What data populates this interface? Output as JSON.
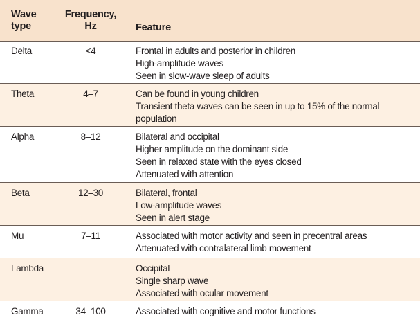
{
  "headers": {
    "wave_line1": "Wave",
    "wave_line2": "type",
    "freq_line1": "Frequency,",
    "freq_line2": "Hz",
    "feature": "Feature"
  },
  "rows": [
    {
      "wave": "Delta",
      "freq": "<4",
      "features": [
        "Frontal in adults and posterior in children",
        "High-amplitude waves",
        "Seen in slow-wave sleep of adults"
      ]
    },
    {
      "wave": "Theta",
      "freq": "4–7",
      "features": [
        "Can be found in young children",
        "Transient theta waves can be seen in up to 15% of the normal",
        "population"
      ]
    },
    {
      "wave": "Alpha",
      "freq": "8–12",
      "features": [
        "Bilateral and occipital",
        "Higher amplitude on the dominant side",
        "Seen in relaxed state with the eyes closed",
        "Attenuated with attention"
      ]
    },
    {
      "wave": "Beta",
      "freq": "12–30",
      "features": [
        "Bilateral, frontal",
        "Low-amplitude waves",
        "Seen in alert stage"
      ]
    },
    {
      "wave": "Mu",
      "freq": "7–11",
      "features": [
        "Associated with motor activity and seen in precentral areas",
        "Attenuated with contralateral limb movement"
      ]
    },
    {
      "wave": "Lambda",
      "freq": "",
      "features": [
        "Occipital",
        "Single sharp wave",
        "Associated with ocular movement"
      ]
    },
    {
      "wave": "Gamma",
      "freq": "34–100",
      "features": [
        "Associated with cognitive and motor functions"
      ]
    }
  ],
  "colors": {
    "header_bg": "#f8e2cc",
    "alt_row_bg": "#fdf0e2",
    "rule": "#6a5d55"
  }
}
